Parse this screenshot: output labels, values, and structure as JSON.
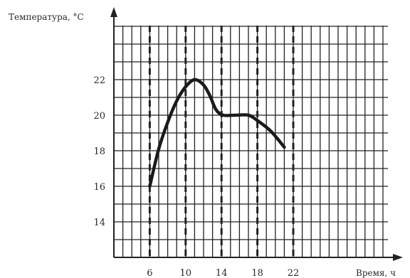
{
  "chart_data": {
    "type": "line",
    "xlabel": "Время, ч",
    "ylabel": "Температура, °С",
    "x_ticks": [
      6,
      10,
      14,
      18,
      22
    ],
    "y_ticks": [
      14,
      16,
      18,
      20,
      22
    ],
    "dashed_guides_x": [
      6,
      10,
      14,
      18,
      22
    ],
    "xlim": [
      2,
      28
    ],
    "ylim": [
      12,
      25
    ],
    "grid": true,
    "grid_step": {
      "x": 1,
      "y": 1
    },
    "series": [
      {
        "values": [
          {
            "x": 6,
            "y": 16
          },
          {
            "x": 7,
            "y": 18.1
          },
          {
            "x": 8,
            "y": 19.6
          },
          {
            "x": 9,
            "y": 20.8
          },
          {
            "x": 10,
            "y": 21.6
          },
          {
            "x": 11,
            "y": 22
          },
          {
            "x": 12,
            "y": 21.7
          },
          {
            "x": 12.7,
            "y": 21.1
          },
          {
            "x": 13.4,
            "y": 20.3
          },
          {
            "x": 14.2,
            "y": 20
          },
          {
            "x": 15.5,
            "y": 20
          },
          {
            "x": 17,
            "y": 20
          },
          {
            "x": 18,
            "y": 19.7
          },
          {
            "x": 19.5,
            "y": 19.1
          },
          {
            "x": 21,
            "y": 18.2
          }
        ]
      }
    ]
  }
}
